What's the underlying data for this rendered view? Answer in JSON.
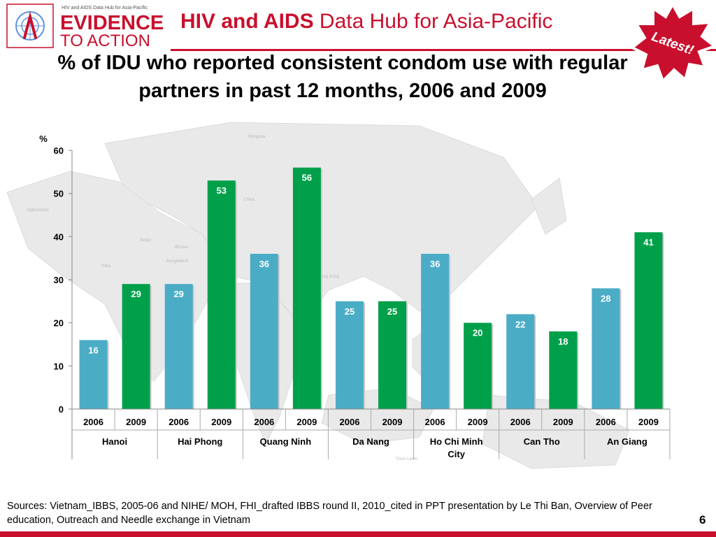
{
  "header": {
    "logo_tagline": "HIV and AIDS Data Hub for Asia-Pacific",
    "logo_line1": "EVIDENCE",
    "logo_line2": "TO ACTION",
    "title_bold": "HIV and AIDS",
    "title_rest": "Data Hub for Asia-Pacific",
    "badge": "Latest!",
    "accent_color": "#c8102e"
  },
  "map_labels": [
    "Mongolia",
    "China",
    "Afghanistan",
    "Nepal",
    "Bhutan",
    "Bangladesh",
    "India",
    "Hong Kong",
    "Timor-Leste"
  ],
  "chart_data": {
    "type": "bar",
    "title": "% of IDU who reported consistent condom use with regular partners in past 12 months, 2006 and 2009",
    "ylabel": "%",
    "ylim": [
      0,
      60
    ],
    "yticks": [
      0,
      10,
      20,
      30,
      40,
      50,
      60
    ],
    "groups": [
      "Hanoi",
      "Hai Phong",
      "Quang Ninh",
      "Da Nang",
      "Ho Chi Minh City",
      "Can Tho",
      "An Giang"
    ],
    "years": [
      "2006",
      "2009"
    ],
    "series": [
      {
        "name": "2006",
        "color": "#4bacc6",
        "values": [
          16,
          29,
          36,
          25,
          36,
          22,
          28
        ]
      },
      {
        "name": "2009",
        "color": "#00a04a",
        "values": [
          29,
          53,
          56,
          25,
          20,
          18,
          41
        ]
      }
    ],
    "grid": false,
    "legend": "none"
  },
  "sources": "Sources: Vietnam_IBBS, 2005-06 and NIHE/ MOH, FHI_drafted IBBS round II, 2010_cited in PPT presentation  by Le Thi Ban, Overview of Peer education, Outreach and Needle exchange in Vietnam",
  "page_number": "6"
}
